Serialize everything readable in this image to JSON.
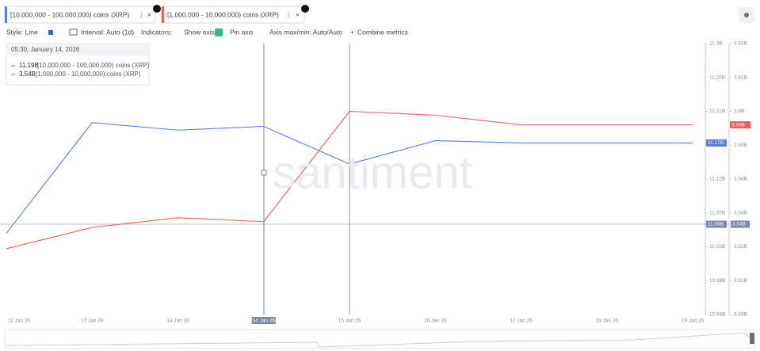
{
  "tabs": [
    "[10,000,000 - 100,000,000) coins (XRP)",
    "[1,000,000 - 10,000,000) coins (XRP)"
  ],
  "toolbar": {
    "style": "Style: Line",
    "interval": "Interval: Auto (1d)",
    "indicators": "Indicators:",
    "show_axis": "Show axis",
    "pin_axis": "Pin axis",
    "axis_minmax": "Axis max/min: Auto/Auto",
    "combine": "Combine metrics"
  },
  "watermark": "santiment",
  "tooltip": {
    "time": "05:30, January 14, 2026",
    "rows": [
      {
        "value": 11.19,
        "label": "11.19B"
      },
      {
        "value": 3.54,
        "label": "3.54B"
      }
    ]
  },
  "chart_data": {
    "type": "line",
    "categories": [
      "11 Jan 26",
      "12 Jan 26",
      "13 Jan 26",
      "14 Jan 26",
      "15 Jan 26",
      "16 Jan 26",
      "17 Jan 26",
      "18 Jan 26",
      "19 Jan 26"
    ],
    "highlight_category": "14 Jan 26",
    "series": [
      {
        "name": "[10,000,000 - 100,000,000) coins (XRP)",
        "color": "#5b7be0",
        "axis": "y",
        "values": [
          11.048,
          11.195,
          11.185,
          11.19,
          11.14,
          11.171,
          11.168,
          11.168,
          11.168
        ],
        "last_label": "11.17B"
      },
      {
        "name": "[1,000,000 - 10,000,000) coins (XRP)",
        "color": "#f05a5a",
        "axis": "y2",
        "values": [
          3.524,
          3.535,
          3.54,
          3.538,
          3.595,
          3.593,
          3.588,
          3.588,
          3.588
        ],
        "last_label": "3.59B"
      }
    ],
    "ylim": [
      10.94,
      11.3
    ],
    "yticks": [
      {
        "value": 11.3,
        "label": "11.3B"
      },
      {
        "value": 11.255,
        "label": "11.26B"
      },
      {
        "value": 11.21,
        "label": "11.21B"
      },
      {
        "value": 11.165,
        "label": "11.17B"
      },
      {
        "value": 11.12,
        "label": "11.12B"
      },
      {
        "value": 11.075,
        "label": "11.07B"
      },
      {
        "value": 11.03,
        "label": "11.03B"
      },
      {
        "value": 10.985,
        "label": "10.98B"
      },
      {
        "value": 10.94,
        "label": "10.94B"
      }
    ],
    "y2lim": [
      3.49,
      3.63
    ],
    "y2ticks": [
      {
        "value": 3.63,
        "label": "3.63B"
      },
      {
        "value": 3.6125,
        "label": "3.61B"
      },
      {
        "value": 3.595,
        "label": "3.6B"
      },
      {
        "value": 3.5775,
        "label": "3.58B"
      },
      {
        "value": 3.56,
        "label": "3.56B"
      },
      {
        "value": 3.5425,
        "label": "3.54B"
      },
      {
        "value": 3.525,
        "label": "3.52B"
      },
      {
        "value": 3.5075,
        "label": "3.51B"
      },
      {
        "value": 3.49,
        "label": "3.49B"
      }
    ],
    "crosshair": {
      "y": {
        "value": 11.06,
        "label": "11.06B"
      },
      "y2": {
        "value": 3.54,
        "label": "3.54B"
      }
    }
  }
}
